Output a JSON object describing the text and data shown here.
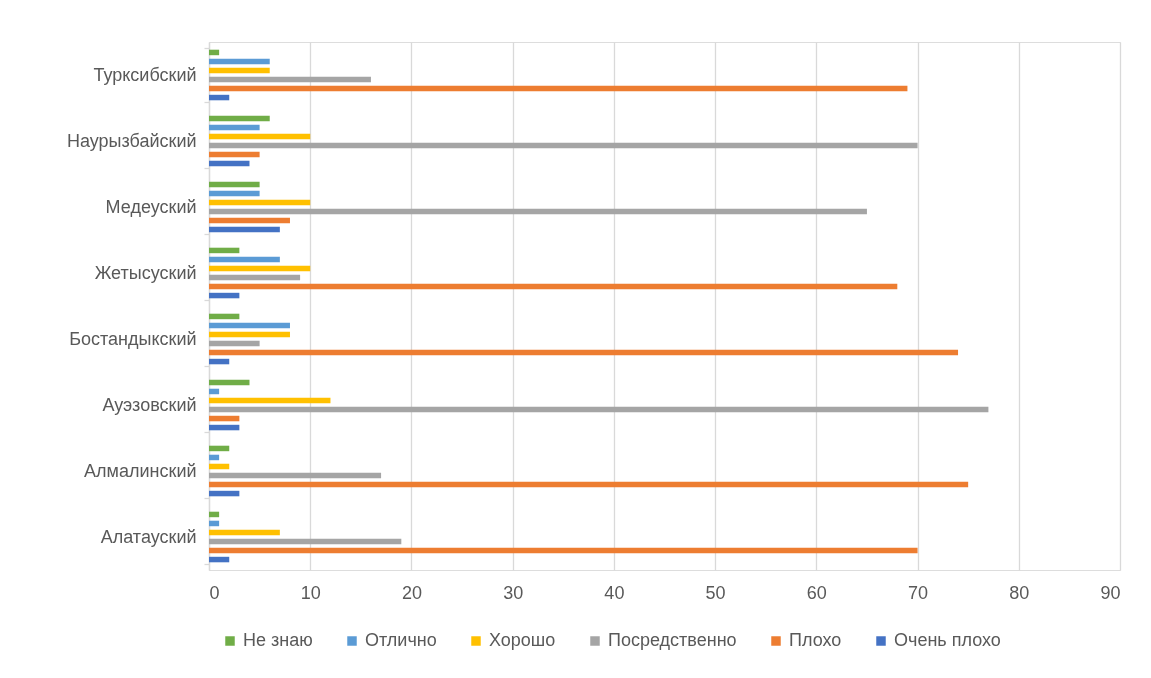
{
  "chart_data": {
    "type": "bar",
    "orientation": "horizontal",
    "categories": [
      "Турксибский",
      "Наурызбайский",
      "Медеуский",
      "Жетысуский",
      "Бостандыкский",
      "Ауэзовский",
      "Алмалинский",
      "Алатауский"
    ],
    "series": [
      {
        "name": "Не знаю",
        "color": "#70ad47",
        "values": [
          1,
          6,
          5,
          3,
          3,
          4,
          2,
          1
        ]
      },
      {
        "name": "Отлично",
        "color": "#5b9bd5",
        "values": [
          6,
          5,
          5,
          7,
          8,
          1,
          1,
          1
        ]
      },
      {
        "name": "Хорошо",
        "color": "#ffc000",
        "values": [
          6,
          10,
          10,
          10,
          8,
          12,
          2,
          7
        ]
      },
      {
        "name": "Посредственно",
        "color": "#a5a5a5",
        "values": [
          16,
          70,
          65,
          9,
          5,
          77,
          17,
          19
        ]
      },
      {
        "name": "Плохо",
        "color": "#ed7d31",
        "values": [
          69,
          5,
          8,
          68,
          74,
          3,
          75,
          70
        ]
      },
      {
        "name": "Очень плохо",
        "color": "#4472c4",
        "values": [
          2,
          4,
          7,
          3,
          2,
          3,
          3,
          2
        ]
      }
    ],
    "xlim": [
      0,
      90
    ],
    "xticks": [
      0,
      10,
      20,
      30,
      40,
      50,
      60,
      70,
      80,
      90
    ],
    "grid": "x",
    "legend": "bottom"
  }
}
